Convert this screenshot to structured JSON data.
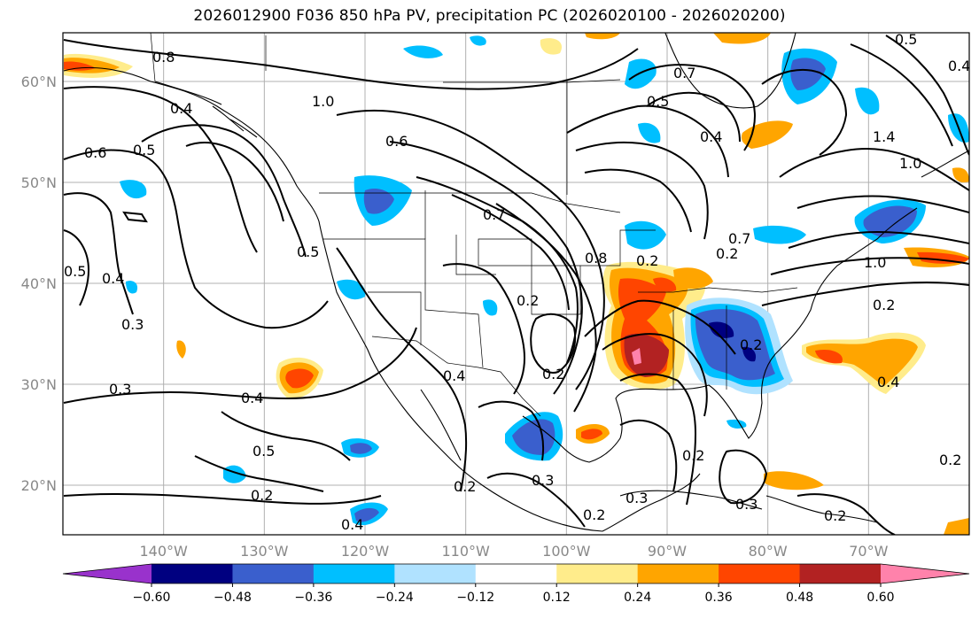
{
  "title": "2026012900 F036 850 hPa PV, precipitation PC (2026020100 - 2026020200)",
  "map": {
    "lat_labels": [
      {
        "text": "60°N",
        "lat": 60
      },
      {
        "text": "50°N",
        "lat": 50
      },
      {
        "text": "40°N",
        "lat": 40
      },
      {
        "text": "30°N",
        "lat": 30
      },
      {
        "text": "20°N",
        "lat": 20
      }
    ],
    "lon_labels": [
      {
        "text": "140°W",
        "lon": -140
      },
      {
        "text": "130°W",
        "lon": -130
      },
      {
        "text": "120°W",
        "lon": -120
      },
      {
        "text": "110°W",
        "lon": -110
      },
      {
        "text": "100°W",
        "lon": -100
      },
      {
        "text": "90°W",
        "lon": -90
      },
      {
        "text": "80°W",
        "lon": -80
      },
      {
        "text": "70°W",
        "lon": -70
      }
    ],
    "extent": {
      "lon_min": -150,
      "lon_max": -60,
      "lat_min": 15,
      "lat_max": 65
    },
    "contour_labels": [
      "0.8",
      "0.4",
      "1.0",
      "0.5",
      "0.6",
      "0.5",
      "0.7",
      "0.4",
      "0.7",
      "0.6",
      "0.5",
      "0.4",
      "0.5",
      "0.3",
      "0.3",
      "0.4",
      "0.5",
      "0.2",
      "0.4",
      "0.2",
      "0.8",
      "0.2",
      "0.4",
      "0.2",
      "0.3",
      "0.2",
      "0.3",
      "0.2",
      "0.3",
      "0.2",
      "0.7",
      "0.5",
      "0.4",
      "1.4",
      "1.0",
      "0.2",
      "1.0",
      "0.2",
      "0.4",
      "0.2",
      "0.2",
      "0.2"
    ]
  },
  "colorbar": {
    "ticks": [
      "−0.60",
      "−0.48",
      "−0.36",
      "−0.24",
      "−0.12",
      "0.12",
      "0.24",
      "0.36",
      "0.48",
      "0.60"
    ],
    "colors": [
      "#9932cc",
      "#000080",
      "#3a5fcd",
      "#00bfff",
      "#b0e2ff",
      "#ffffff",
      "#ffec8b",
      "#ffa500",
      "#ff4500",
      "#b22222",
      "#ff82ab"
    ]
  }
}
